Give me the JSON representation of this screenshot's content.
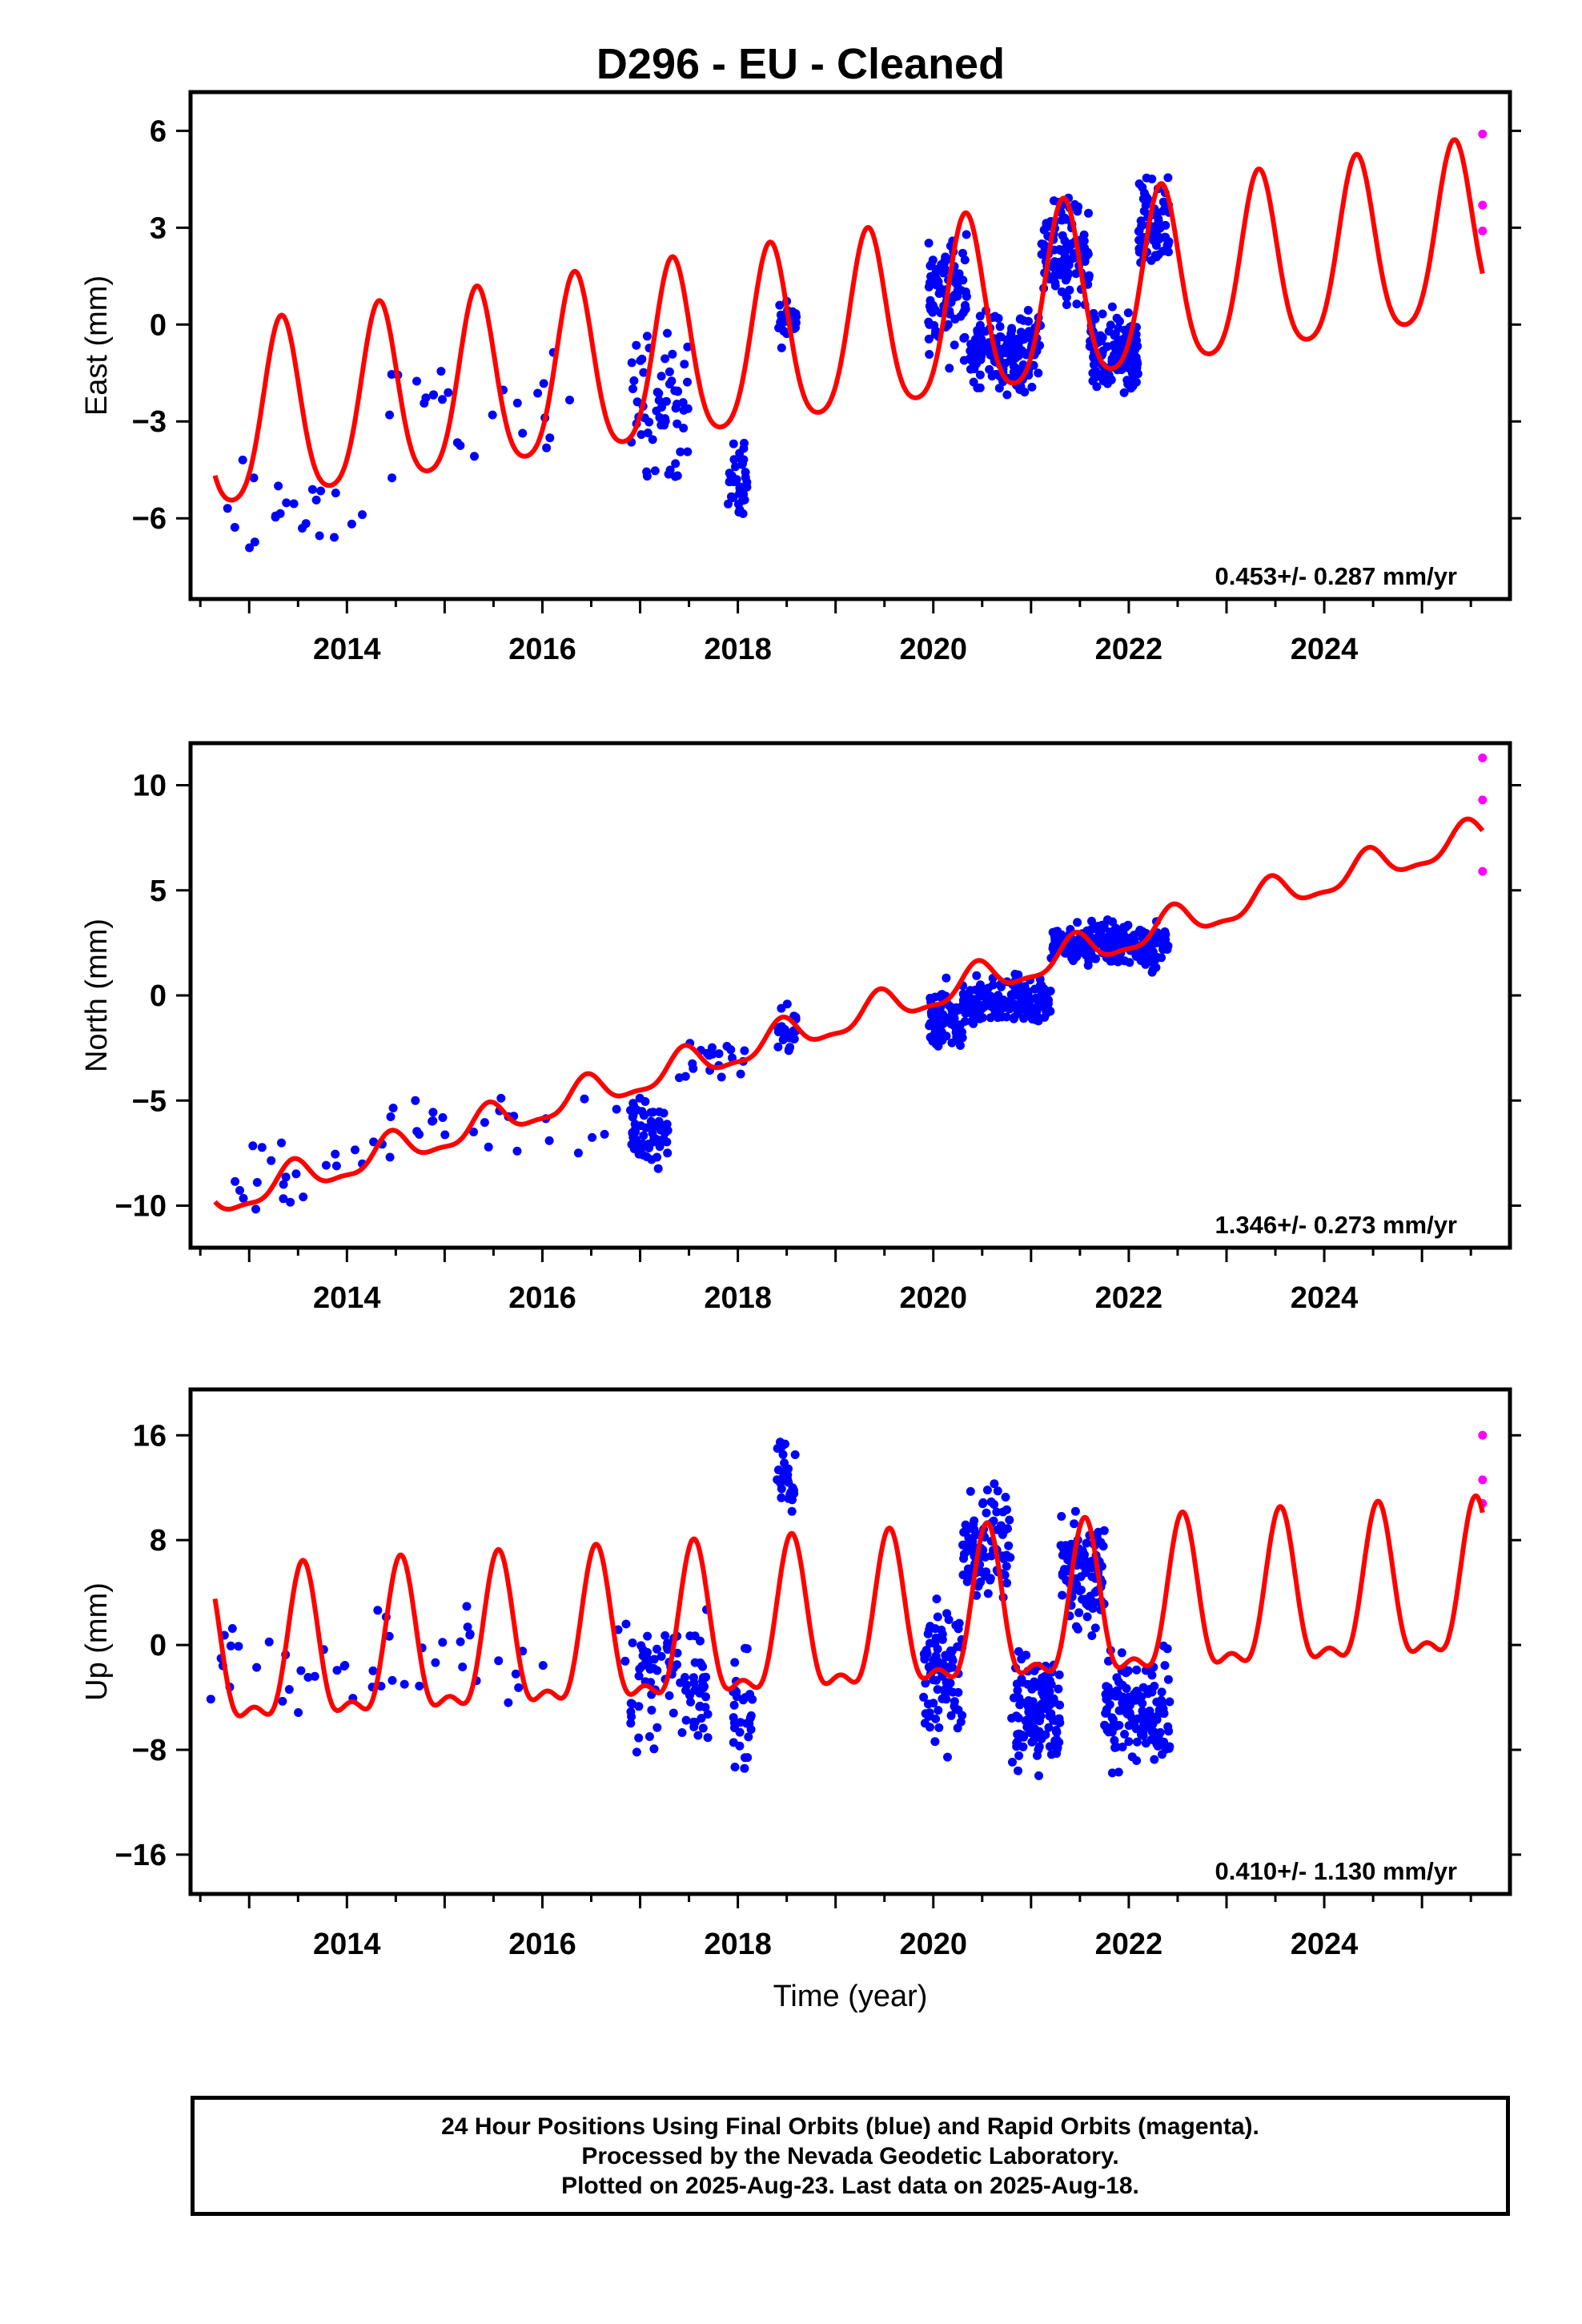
{
  "title": "D296  - EU - Cleaned",
  "colors": {
    "final_orbits": "#0000ff",
    "rapid_orbits": "#ff00ff",
    "model": "#ff0000",
    "frame": "#000000"
  },
  "footer": {
    "line1": "24 Hour Positions Using Final Orbits (blue) and Rapid Orbits (magenta).",
    "line2": "Processed by the Nevada Geodetic Laboratory.",
    "line3": "Plotted on 2025-Aug-23. Last data on 2025-Aug-18."
  },
  "chart_data": [
    {
      "type": "scatter",
      "ylabel": "East (mm)",
      "xlabel": "",
      "xlim": [
        2012.4,
        2025.9
      ],
      "ylim": [
        -8.5,
        7.2
      ],
      "x_ticks": [
        2014,
        2016,
        2018,
        2020,
        2022,
        2024
      ],
      "x_tick_labels": [
        "2014",
        "2016",
        "2018",
        "2020",
        "2022",
        "2024"
      ],
      "y_ticks": [
        -6,
        -3,
        0,
        3,
        6
      ],
      "y_tick_labels": [
        "−6",
        "−3",
        "0",
        "3",
        "6"
      ],
      "rate_text": "0.453+/- 0.287 mm/yr",
      "series": [
        {
          "kind": "final",
          "clusters": [
            {
              "x0": 2012.6,
              "x1": 2014.2,
              "n": 22,
              "center": -5.8,
              "spread": 2.4
            },
            {
              "x0": 2014.2,
              "x1": 2016.9,
              "n": 26,
              "center": -2.8,
              "spread": 2.6
            },
            {
              "x0": 2016.9,
              "x1": 2017.5,
              "n": 60,
              "center": -2.5,
              "spread": 3.2
            },
            {
              "x0": 2017.9,
              "x1": 2018.1,
              "n": 35,
              "center": -4.8,
              "spread": 1.8
            },
            {
              "x0": 2018.4,
              "x1": 2018.6,
              "n": 30,
              "center": 0.0,
              "spread": 0.9
            },
            {
              "x0": 2019.95,
              "x1": 2020.35,
              "n": 90,
              "center": 1.0,
              "spread": 2.8
            },
            {
              "x0": 2020.35,
              "x1": 2021.1,
              "n": 160,
              "center": -0.8,
              "spread": 1.6
            },
            {
              "x0": 2021.1,
              "x1": 2021.6,
              "n": 110,
              "center": 2.2,
              "spread": 2.2
            },
            {
              "x0": 2021.6,
              "x1": 2022.1,
              "n": 130,
              "center": -1.0,
              "spread": 1.8
            },
            {
              "x0": 2022.1,
              "x1": 2022.42,
              "n": 70,
              "center": 3.0,
              "spread": 2.3
            }
          ]
        },
        {
          "kind": "rapid",
          "points": [
            [
              2025.62,
              5.9
            ],
            [
              2025.62,
              3.7
            ],
            [
              2025.62,
              2.9
            ]
          ]
        },
        {
          "kind": "model",
          "rate": 0.453,
          "offset": -0.34,
          "ref_year": 2019.0,
          "annual_amp": 2.75,
          "annual_phase_year": 2020.33,
          "semi_amp": 0.45
        }
      ]
    },
    {
      "type": "scatter",
      "ylabel": "North (mm)",
      "xlabel": "",
      "xlim": [
        2012.4,
        2025.9
      ],
      "ylim": [
        -12.0,
        12.0
      ],
      "x_ticks": [
        2014,
        2016,
        2018,
        2020,
        2022,
        2024
      ],
      "x_tick_labels": [
        "2014",
        "2016",
        "2018",
        "2020",
        "2022",
        "2024"
      ],
      "y_ticks": [
        -10,
        -5,
        0,
        5,
        10
      ],
      "y_tick_labels": [
        "−10",
        "−5",
        "0",
        "5",
        "10"
      ],
      "rate_text": "1.346+/- 0.273 mm/yr",
      "series": [
        {
          "kind": "final",
          "clusters": [
            {
              "x0": 2012.6,
              "x1": 2014.2,
              "n": 20,
              "center": -8.5,
              "spread": 2.8
            },
            {
              "x0": 2014.2,
              "x1": 2016.9,
              "n": 28,
              "center": -6.2,
              "spread": 2.4
            },
            {
              "x0": 2016.9,
              "x1": 2017.3,
              "n": 60,
              "center": -6.6,
              "spread": 2.4
            },
            {
              "x0": 2017.4,
              "x1": 2018.1,
              "n": 20,
              "center": -3.0,
              "spread": 1.6
            },
            {
              "x0": 2018.4,
              "x1": 2018.6,
              "n": 25,
              "center": -1.8,
              "spread": 1.6
            },
            {
              "x0": 2019.95,
              "x1": 2020.3,
              "n": 70,
              "center": -1.2,
              "spread": 2.4
            },
            {
              "x0": 2020.3,
              "x1": 2021.2,
              "n": 170,
              "center": -0.2,
              "spread": 1.6
            },
            {
              "x0": 2021.2,
              "x1": 2022.42,
              "n": 220,
              "center": 2.4,
              "spread": 1.5
            }
          ]
        },
        {
          "kind": "rapid",
          "points": [
            [
              2025.62,
              11.3
            ],
            [
              2025.62,
              9.3
            ],
            [
              2025.62,
              5.9
            ]
          ]
        },
        {
          "kind": "model",
          "rate": 1.346,
          "offset": -1.3,
          "ref_year": 2019.0,
          "annual_amp": 0.75,
          "annual_phase_year": 2019.45,
          "semi_amp": 0.25
        }
      ]
    },
    {
      "type": "scatter",
      "ylabel": "Up (mm)",
      "xlabel": "Time (year)",
      "xlim": [
        2012.4,
        2025.9
      ],
      "ylim": [
        -19.0,
        19.5
      ],
      "x_ticks": [
        2014,
        2016,
        2018,
        2020,
        2022,
        2024
      ],
      "x_tick_labels": [
        "2014",
        "2016",
        "2018",
        "2020",
        "2022",
        "2024"
      ],
      "y_ticks": [
        -16,
        -8,
        0,
        8,
        16
      ],
      "y_tick_labels": [
        "−16",
        "−8",
        "0",
        "8",
        "16"
      ],
      "rate_text": "0.410+/- 1.130 mm/yr",
      "series": [
        {
          "kind": "final",
          "clusters": [
            {
              "x0": 2012.6,
              "x1": 2014.3,
              "n": 24,
              "center": -2.0,
              "spread": 6.5
            },
            {
              "x0": 2014.3,
              "x1": 2016.9,
              "n": 26,
              "center": 0.0,
              "spread": 7.0
            },
            {
              "x0": 2016.9,
              "x1": 2017.7,
              "n": 90,
              "center": -3.0,
              "spread": 7.0
            },
            {
              "x0": 2017.95,
              "x1": 2018.15,
              "n": 30,
              "center": -5.0,
              "spread": 6.0
            },
            {
              "x0": 2018.4,
              "x1": 2018.6,
              "n": 35,
              "center": 12.5,
              "spread": 4.0
            },
            {
              "x0": 2019.9,
              "x1": 2020.3,
              "n": 90,
              "center": -2.0,
              "spread": 7.5
            },
            {
              "x0": 2020.3,
              "x1": 2020.8,
              "n": 90,
              "center": 8.0,
              "spread": 6.0
            },
            {
              "x0": 2020.8,
              "x1": 2021.3,
              "n": 120,
              "center": -5.0,
              "spread": 6.5
            },
            {
              "x0": 2021.3,
              "x1": 2021.75,
              "n": 90,
              "center": 5.0,
              "spread": 6.0
            },
            {
              "x0": 2021.75,
              "x1": 2022.42,
              "n": 140,
              "center": -5.0,
              "spread": 6.0
            }
          ]
        },
        {
          "kind": "rapid",
          "points": [
            [
              2025.62,
              16.0
            ],
            [
              2025.62,
              12.6
            ],
            [
              2025.62,
              10.8
            ]
          ]
        },
        {
          "kind": "model",
          "rate": 0.41,
          "offset": 1.0,
          "ref_year": 2019.0,
          "annual_amp": 5.5,
          "annual_phase_year": 2019.55,
          "semi_amp": 2.2
        }
      ]
    }
  ]
}
